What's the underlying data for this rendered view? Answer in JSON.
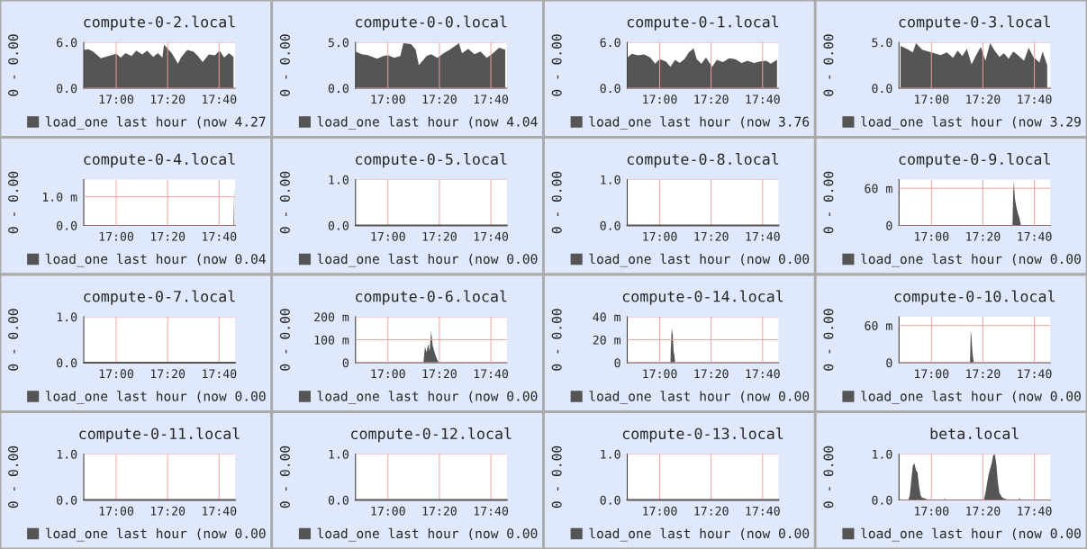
{
  "chart_data": [
    {
      "type": "area",
      "title": "compute-0-2.local",
      "ylabel": "0 - 0.00",
      "xlim": [
        16.79,
        17.77
      ],
      "xticks": [
        {
          "value": 17,
          "label": "17:00"
        },
        {
          "value": 17.3333,
          "label": "17:20"
        },
        {
          "value": 17.6667,
          "label": "17:40"
        }
      ],
      "ylim": [
        0,
        6
      ],
      "yticks": [
        {
          "value": 0,
          "label": "0.0"
        },
        {
          "value": 6,
          "label": "6.0"
        }
      ],
      "grid": true,
      "legend": "bottom",
      "series": [
        {
          "name": "load_one last hour (now 4.27",
          "color": "#555555",
          "x": [
            16.79,
            16.82,
            16.85,
            16.9,
            16.95,
            17.0,
            17.03,
            17.06,
            17.1,
            17.13,
            17.17,
            17.2,
            17.24,
            17.27,
            17.3,
            17.31,
            17.36,
            17.4,
            17.42,
            17.46,
            17.5,
            17.53,
            17.56,
            17.6,
            17.64,
            17.67,
            17.7,
            17.73,
            17.76
          ],
          "values": [
            5.0,
            5.1,
            4.8,
            3.9,
            4.2,
            4.5,
            4.0,
            4.6,
            4.2,
            4.9,
            4.4,
            4.9,
            4.1,
            4.6,
            4.0,
            5.7,
            4.6,
            3.2,
            4.0,
            5.0,
            4.8,
            4.2,
            3.4,
            4.4,
            4.3,
            4.9,
            4.0,
            4.6,
            4.1
          ]
        }
      ]
    },
    {
      "type": "area",
      "title": "compute-0-0.local",
      "ylabel": "0 - 0.00",
      "xlim": [
        16.79,
        17.77
      ],
      "xticks": [
        {
          "value": 17,
          "label": "17:00"
        },
        {
          "value": 17.3333,
          "label": "17:20"
        },
        {
          "value": 17.6667,
          "label": "17:40"
        }
      ],
      "ylim": [
        0,
        5
      ],
      "yticks": [
        {
          "value": 0,
          "label": "0.0"
        },
        {
          "value": 5,
          "label": "5.0"
        }
      ],
      "grid": true,
      "legend": "bottom",
      "series": [
        {
          "name": "load_one last hour (now 4.04",
          "color": "#555555",
          "x": [
            16.79,
            16.83,
            16.87,
            16.9,
            16.93,
            16.97,
            17.0,
            17.04,
            17.08,
            17.1,
            17.15,
            17.18,
            17.2,
            17.25,
            17.28,
            17.32,
            17.36,
            17.4,
            17.46,
            17.48,
            17.52,
            17.56,
            17.6,
            17.64,
            17.68,
            17.72,
            17.76
          ],
          "values": [
            4.0,
            3.7,
            3.6,
            3.4,
            3.2,
            3.5,
            3.6,
            3.3,
            3.5,
            4.9,
            4.8,
            4.2,
            2.5,
            3.5,
            3.7,
            3.3,
            3.8,
            4.2,
            4.9,
            3.8,
            4.3,
            3.7,
            4.0,
            3.3,
            3.8,
            4.4,
            4.2
          ]
        }
      ]
    },
    {
      "type": "area",
      "title": "compute-0-1.local",
      "ylabel": "0 - 0.00",
      "xlim": [
        16.79,
        17.77
      ],
      "xticks": [
        {
          "value": 17,
          "label": "17:00"
        },
        {
          "value": 17.3333,
          "label": "17:20"
        },
        {
          "value": 17.6667,
          "label": "17:40"
        }
      ],
      "ylim": [
        0,
        6
      ],
      "yticks": [
        {
          "value": 0,
          "label": "0.0"
        },
        {
          "value": 6,
          "label": "6.0"
        }
      ],
      "grid": true,
      "legend": "bottom",
      "series": [
        {
          "name": "load_one last hour (now 3.76",
          "color": "#555555",
          "x": [
            16.79,
            16.82,
            16.86,
            16.9,
            16.94,
            16.97,
            17.0,
            17.04,
            17.07,
            17.1,
            17.13,
            17.16,
            17.19,
            17.22,
            17.24,
            17.27,
            17.3,
            17.34,
            17.37,
            17.41,
            17.45,
            17.49,
            17.53,
            17.57,
            17.61,
            17.65,
            17.69,
            17.72,
            17.76
          ],
          "values": [
            4.0,
            4.5,
            4.3,
            4.4,
            4.0,
            3.2,
            3.8,
            3.5,
            2.8,
            3.7,
            3.3,
            3.8,
            4.7,
            5.2,
            3.8,
            3.2,
            4.0,
            2.8,
            3.7,
            3.4,
            3.9,
            3.8,
            3.3,
            3.6,
            3.3,
            3.5,
            3.6,
            3.2,
            3.7
          ]
        }
      ]
    },
    {
      "type": "area",
      "title": "compute-0-3.local",
      "ylabel": "0 - 0.00",
      "xlim": [
        16.79,
        17.77
      ],
      "xticks": [
        {
          "value": 17,
          "label": "17:00"
        },
        {
          "value": 17.3333,
          "label": "17:20"
        },
        {
          "value": 17.6667,
          "label": "17:40"
        }
      ],
      "ylim": [
        0,
        5
      ],
      "yticks": [
        {
          "value": 0,
          "label": "0.0"
        },
        {
          "value": 5,
          "label": "5.0"
        }
      ],
      "grid": true,
      "legend": "bottom",
      "series": [
        {
          "name": "load_one last hour (now 3.29",
          "color": "#555555",
          "x": [
            16.8,
            16.84,
            16.88,
            16.9,
            16.94,
            16.98,
            17.02,
            17.06,
            17.1,
            17.14,
            17.17,
            17.2,
            17.23,
            17.26,
            17.29,
            17.32,
            17.35,
            17.38,
            17.41,
            17.44,
            17.47,
            17.5,
            17.53,
            17.56,
            17.6,
            17.63,
            17.66,
            17.7,
            17.72,
            17.75
          ],
          "values": [
            4.6,
            4.3,
            3.9,
            4.9,
            4.2,
            4.0,
            3.8,
            3.6,
            3.9,
            3.3,
            4.1,
            3.5,
            4.3,
            2.6,
            3.6,
            4.5,
            3.0,
            4.9,
            4.1,
            3.4,
            3.8,
            3.2,
            4.0,
            3.6,
            3.0,
            4.4,
            3.4,
            2.8,
            4.0,
            2.5
          ]
        }
      ]
    },
    {
      "type": "area",
      "title": "compute-0-4.local",
      "ylabel": "0 - 0.00",
      "xlim": [
        16.79,
        17.77
      ],
      "xticks": [
        {
          "value": 17,
          "label": "17:00"
        },
        {
          "value": 17.3333,
          "label": "17:20"
        },
        {
          "value": 17.6667,
          "label": "17:40"
        }
      ],
      "ylim": [
        0,
        1.6
      ],
      "yticks": [
        {
          "value": 0,
          "label": "0.0"
        },
        {
          "value": 1,
          "label": "1.0 m"
        }
      ],
      "grid": true,
      "legend": "bottom",
      "series": [
        {
          "name": "load_one last hour (now 0.04",
          "color": "#555555",
          "x": [
            16.79,
            17.76,
            17.765
          ],
          "values": [
            0,
            0,
            1.34
          ]
        }
      ]
    },
    {
      "type": "area",
      "title": "compute-0-5.local",
      "ylabel": "0 - 0.00",
      "xlim": [
        16.79,
        17.77
      ],
      "xticks": [
        {
          "value": 17,
          "label": "17:00"
        },
        {
          "value": 17.3333,
          "label": "17:20"
        },
        {
          "value": 17.6667,
          "label": "17:40"
        }
      ],
      "ylim": [
        0,
        1
      ],
      "yticks": [
        {
          "value": 0,
          "label": "0.0"
        },
        {
          "value": 1,
          "label": "1.0"
        }
      ],
      "grid": true,
      "legend": "bottom",
      "series": [
        {
          "type": "line",
          "name": "load_one last hour (now 0.00",
          "color": "#555555",
          "x": [
            16.79,
            17.77
          ],
          "values": [
            0,
            0
          ]
        }
      ]
    },
    {
      "type": "area",
      "title": "compute-0-8.local",
      "ylabel": "0 - 0.00",
      "xlim": [
        16.79,
        17.77
      ],
      "xticks": [
        {
          "value": 17,
          "label": "17:00"
        },
        {
          "value": 17.3333,
          "label": "17:20"
        },
        {
          "value": 17.6667,
          "label": "17:40"
        }
      ],
      "ylim": [
        0,
        1
      ],
      "yticks": [
        {
          "value": 0,
          "label": "0.0"
        },
        {
          "value": 1,
          "label": "1.0"
        }
      ],
      "grid": true,
      "legend": "bottom",
      "series": [
        {
          "type": "line",
          "name": "load_one last hour (now 0.00",
          "color": "#555555",
          "x": [
            16.79,
            17.77
          ],
          "values": [
            0,
            0
          ]
        }
      ]
    },
    {
      "type": "area",
      "title": "compute-0-9.local",
      "ylabel": "0 - 0.00",
      "xlim": [
        16.79,
        17.77
      ],
      "xticks": [
        {
          "value": 17,
          "label": "17:00"
        },
        {
          "value": 17.3333,
          "label": "17:20"
        },
        {
          "value": 17.6667,
          "label": "17:40"
        }
      ],
      "ylim": [
        0,
        74
      ],
      "yticks": [
        {
          "value": 0,
          "label": "0"
        },
        {
          "value": 60,
          "label": "60 m"
        }
      ],
      "grid": true,
      "legend": "bottom",
      "series": [
        {
          "name": "load_one last hour (now 0.00",
          "color": "#555555",
          "x": [
            16.79,
            17.525,
            17.53,
            17.535,
            17.54,
            17.55,
            17.56,
            17.57,
            17.58,
            17.77
          ],
          "values": [
            0,
            0,
            56,
            71,
            45,
            30,
            20,
            12,
            0,
            0
          ]
        }
      ]
    },
    {
      "type": "area",
      "title": "compute-0-7.local",
      "ylabel": "0 - 0.00",
      "xlim": [
        16.79,
        17.77
      ],
      "xticks": [
        {
          "value": 17,
          "label": "17:00"
        },
        {
          "value": 17.3333,
          "label": "17:20"
        },
        {
          "value": 17.6667,
          "label": "17:40"
        }
      ],
      "ylim": [
        0,
        1
      ],
      "yticks": [
        {
          "value": 0,
          "label": "0.0"
        },
        {
          "value": 1,
          "label": "1.0"
        }
      ],
      "grid": true,
      "legend": "bottom",
      "series": [
        {
          "type": "line",
          "name": "load_one last hour (now 0.00",
          "color": "#555555",
          "x": [
            16.79,
            17.77
          ],
          "values": [
            0,
            0
          ]
        }
      ]
    },
    {
      "type": "area",
      "title": "compute-0-6.local",
      "ylabel": "0 - 0.00",
      "xlim": [
        16.79,
        17.77
      ],
      "xticks": [
        {
          "value": 17,
          "label": "17:00"
        },
        {
          "value": 17.3333,
          "label": "17:20"
        },
        {
          "value": 17.6667,
          "label": "17:40"
        }
      ],
      "ylim": [
        0,
        200
      ],
      "yticks": [
        {
          "value": 0,
          "label": "0"
        },
        {
          "value": 100,
          "label": "100 m"
        },
        {
          "value": 200,
          "label": "200 m"
        }
      ],
      "grid": true,
      "legend": "bottom",
      "series": [
        {
          "name": "load_one last hour (now 0.00",
          "color": "#555555",
          "x": [
            16.79,
            17.23,
            17.24,
            17.25,
            17.26,
            17.27,
            17.28,
            17.29,
            17.3,
            17.31,
            17.32,
            17.33,
            17.77
          ],
          "values": [
            0,
            0,
            70,
            45,
            80,
            50,
            137,
            75,
            50,
            30,
            12,
            0,
            0
          ]
        }
      ]
    },
    {
      "type": "area",
      "title": "compute-0-14.local",
      "ylabel": "0 - 0.00",
      "xlim": [
        16.79,
        17.77
      ],
      "xticks": [
        {
          "value": 17,
          "label": "17:00"
        },
        {
          "value": 17.3333,
          "label": "17:20"
        },
        {
          "value": 17.6667,
          "label": "17:40"
        }
      ],
      "ylim": [
        0,
        40
      ],
      "yticks": [
        {
          "value": 0,
          "label": "0"
        },
        {
          "value": 20,
          "label": "20 m"
        },
        {
          "value": 40,
          "label": "40 m"
        }
      ],
      "grid": true,
      "legend": "bottom",
      "series": [
        {
          "name": "load_one last hour (now 0.00",
          "color": "#555555",
          "x": [
            16.79,
            17.07,
            17.072,
            17.078,
            17.085,
            17.09,
            17.095,
            17.1,
            17.77
          ],
          "values": [
            0,
            0,
            12,
            30,
            24,
            10,
            7,
            0,
            0
          ]
        }
      ]
    },
    {
      "type": "area",
      "title": "compute-0-10.local",
      "ylabel": "0 - 0.00",
      "xlim": [
        16.79,
        17.77
      ],
      "xticks": [
        {
          "value": 17,
          "label": "17:00"
        },
        {
          "value": 17.3333,
          "label": "17:20"
        },
        {
          "value": 17.6667,
          "label": "17:40"
        }
      ],
      "ylim": [
        0,
        74
      ],
      "yticks": [
        {
          "value": 0,
          "label": "0"
        },
        {
          "value": 60,
          "label": "60 m"
        }
      ],
      "grid": true,
      "legend": "bottom",
      "series": [
        {
          "name": "load_one last hour (now 0.00",
          "color": "#555555",
          "x": [
            16.79,
            17.25,
            17.255,
            17.26,
            17.265,
            17.27,
            17.275,
            17.77
          ],
          "values": [
            0,
            0,
            53,
            40,
            20,
            8,
            0,
            0
          ]
        }
      ]
    },
    {
      "type": "area",
      "title": "compute-0-11.local",
      "ylabel": "0 - 0.00",
      "xlim": [
        16.79,
        17.77
      ],
      "xticks": [
        {
          "value": 17,
          "label": "17:00"
        },
        {
          "value": 17.3333,
          "label": "17:20"
        },
        {
          "value": 17.6667,
          "label": "17:40"
        }
      ],
      "ylim": [
        0,
        1
      ],
      "yticks": [
        {
          "value": 0,
          "label": "0.0"
        },
        {
          "value": 1,
          "label": "1.0"
        }
      ],
      "grid": true,
      "legend": "bottom",
      "series": [
        {
          "type": "line",
          "name": "load_one last hour (now 0.00",
          "color": "#555555",
          "x": [
            16.79,
            17.77
          ],
          "values": [
            0,
            0
          ]
        }
      ]
    },
    {
      "type": "area",
      "title": "compute-0-12.local",
      "ylabel": "0 - 0.00",
      "xlim": [
        16.79,
        17.77
      ],
      "xticks": [
        {
          "value": 17,
          "label": "17:00"
        },
        {
          "value": 17.3333,
          "label": "17:20"
        },
        {
          "value": 17.6667,
          "label": "17:40"
        }
      ],
      "ylim": [
        0,
        1
      ],
      "yticks": [
        {
          "value": 0,
          "label": "0.0"
        },
        {
          "value": 1,
          "label": "1.0"
        }
      ],
      "grid": true,
      "legend": "bottom",
      "series": [
        {
          "type": "line",
          "name": "load_one last hour (now 0.00",
          "color": "#555555",
          "x": [
            16.79,
            17.77
          ],
          "values": [
            0,
            0
          ]
        }
      ]
    },
    {
      "type": "area",
      "title": "compute-0-13.local",
      "ylabel": "0 - 0.00",
      "xlim": [
        16.79,
        17.77
      ],
      "xticks": [
        {
          "value": 17,
          "label": "17:00"
        },
        {
          "value": 17.3333,
          "label": "17:20"
        },
        {
          "value": 17.6667,
          "label": "17:40"
        }
      ],
      "ylim": [
        0,
        1
      ],
      "yticks": [
        {
          "value": 0,
          "label": "0.0"
        },
        {
          "value": 1,
          "label": "1.0"
        }
      ],
      "grid": true,
      "legend": "bottom",
      "series": [
        {
          "type": "line",
          "name": "load_one last hour (now 0.00",
          "color": "#555555",
          "x": [
            16.79,
            17.77
          ],
          "values": [
            0,
            0
          ]
        }
      ]
    },
    {
      "type": "area",
      "title": "beta.local",
      "ylabel": "0 - 0.00",
      "xlim": [
        16.79,
        17.77
      ],
      "xticks": [
        {
          "value": 17,
          "label": "17:00"
        },
        {
          "value": 17.3333,
          "label": "17:20"
        },
        {
          "value": 17.6667,
          "label": "17:40"
        }
      ],
      "ylim": [
        0,
        1
      ],
      "yticks": [
        {
          "value": 0,
          "label": "0.0"
        },
        {
          "value": 1,
          "label": "1.0"
        }
      ],
      "grid": true,
      "legend": "bottom",
      "series": [
        {
          "name": "load_one last hour (now 0.00",
          "color": "#555555",
          "x": [
            16.79,
            16.8,
            16.81,
            16.85,
            16.86,
            16.87,
            16.88,
            16.89,
            16.9,
            16.91,
            16.92,
            16.93,
            16.94,
            16.96,
            16.98,
            17.08,
            17.087,
            17.095,
            17.34,
            17.35,
            17.37,
            17.39,
            17.4,
            17.41,
            17.42,
            17.43,
            17.44,
            17.46,
            17.48,
            17.5,
            17.56,
            17.57,
            17.58,
            17.77
          ],
          "values": [
            0,
            0.02,
            0,
            0,
            0.1,
            0.45,
            0.75,
            0.8,
            0.65,
            0.6,
            0.3,
            0.1,
            0.05,
            0.03,
            0,
            0,
            0.03,
            0,
            0,
            0.15,
            0.55,
            0.8,
            0.97,
            1.0,
            0.8,
            0.4,
            0.15,
            0.05,
            0.02,
            0,
            0,
            0.03,
            0,
            0
          ]
        }
      ]
    }
  ]
}
